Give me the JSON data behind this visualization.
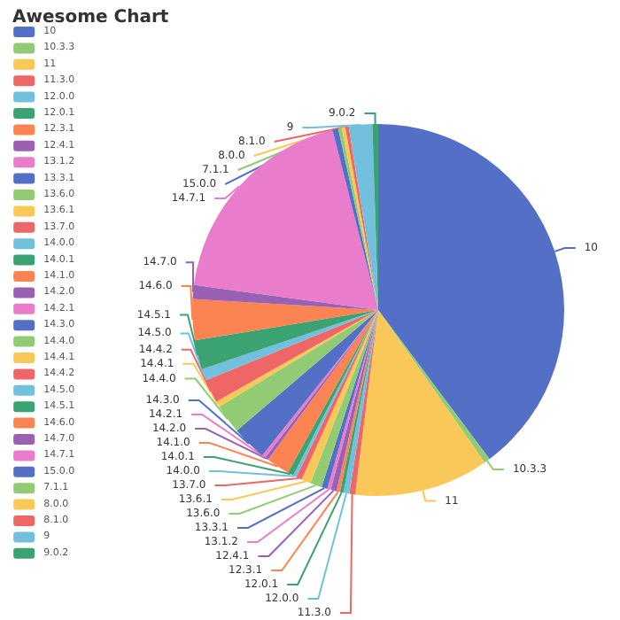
{
  "chart_data": {
    "type": "pie",
    "title": "Awesome Chart",
    "legend": "left",
    "categories": [
      "10",
      "10.3.3",
      "11",
      "11.3.0",
      "12.0.0",
      "12.0.1",
      "12.3.1",
      "12.4.1",
      "13.1.2",
      "13.3.1",
      "13.6.0",
      "13.6.1",
      "13.7.0",
      "14.0.0",
      "14.0.1",
      "14.1.0",
      "14.2.0",
      "14.2.1",
      "14.3.0",
      "14.4.0",
      "14.4.1",
      "14.4.2",
      "14.5.0",
      "14.5.1",
      "14.6.0",
      "14.7.0",
      "14.7.1",
      "15.0.0",
      "7.1.1",
      "8.0.0",
      "8.1.0",
      "9",
      "9.0.2"
    ],
    "values": [
      39.2,
      0.5,
      11.5,
      0.5,
      0.5,
      0.3,
      0.3,
      0.5,
      0.3,
      0.5,
      1.0,
      0.8,
      0.5,
      0.3,
      0.5,
      2.0,
      0.3,
      0.3,
      3.0,
      2.5,
      0.5,
      2.0,
      1.0,
      2.5,
      3.5,
      1.2,
      18.6,
      0.5,
      0.3,
      0.3,
      0.3,
      2.0,
      0.5
    ],
    "colors": [
      "#5470c6",
      "#91cc75",
      "#fac858",
      "#ee6666",
      "#73c0de",
      "#3ba272",
      "#fc8452",
      "#9a60b4",
      "#ea7ccc",
      "#5470c6",
      "#91cc75",
      "#fac858",
      "#ee6666",
      "#73c0de",
      "#3ba272",
      "#fc8452",
      "#9a60b4",
      "#ea7ccc",
      "#5470c6",
      "#91cc75",
      "#fac858",
      "#ee6666",
      "#73c0de",
      "#3ba272",
      "#fc8452",
      "#9a60b4",
      "#ea7ccc",
      "#5470c6",
      "#91cc75",
      "#fac858",
      "#ee6666",
      "#73c0de",
      "#3ba272"
    ]
  }
}
